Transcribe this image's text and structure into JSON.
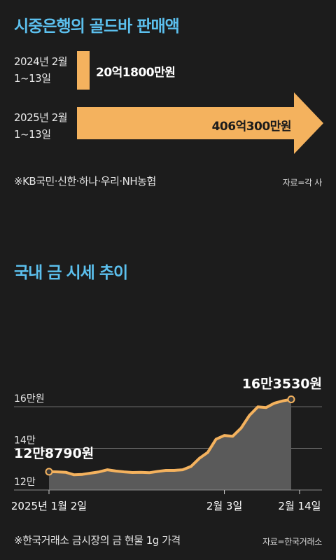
{
  "section1": {
    "title": "시중은행의 골드바 판매액",
    "rows": [
      {
        "period_line1": "2024년 2월",
        "period_line2": "1~13일",
        "value_label": "20억1800만원",
        "value_eok": 20.18
      },
      {
        "period_line1": "2025년 2월",
        "period_line2": "1~13일",
        "value_label": "406억300만원",
        "value_eok": 406.03
      }
    ],
    "note": "※KB국민·신한·하나·우리·NH농협",
    "source": "자료=각 사"
  },
  "section2": {
    "title": "국내 금 시세 추이",
    "note": "※한국거래소 금시장의 금 현물 1g 가격",
    "source": "자료=한국거래소"
  },
  "colors": {
    "accent": "#f4b25e",
    "title_blue": "#5cc0ee",
    "background": "#1c1c1c",
    "area_fill": "#5a5a5a"
  },
  "chart_data": [
    {
      "type": "bar",
      "title": "시중은행의 골드바 판매액",
      "categories": [
        "2024년 2월 1~13일",
        "2025년 2월 1~13일"
      ],
      "values": [
        20.18,
        406.03
      ],
      "data_labels": [
        "20억1800만원",
        "406억300만원"
      ],
      "orientation": "horizontal"
    },
    {
      "type": "area",
      "title": "국내 금 시세 추이",
      "ylim": [
        120000,
        168000
      ],
      "yticks": [
        {
          "value": 120000,
          "label": "12만"
        },
        {
          "value": 140000,
          "label": "14만"
        },
        {
          "value": 160000,
          "label": "16만원"
        }
      ],
      "xticks": [
        {
          "index": 0,
          "label": "2025년 1월 2일"
        },
        {
          "index": 21,
          "label": "2월 3일"
        },
        {
          "index": 30,
          "label": "2월 14일"
        }
      ],
      "series": [
        {
          "values": [
            128790,
            128700,
            128500,
            127300,
            127500,
            128100,
            128700,
            129700,
            129100,
            128700,
            128400,
            128500,
            128300,
            128900,
            129400,
            129400,
            129700,
            131300,
            135200,
            138000,
            144400,
            146200,
            145800,
            149700,
            155800,
            159900,
            159600,
            161700,
            162800,
            163530
          ]
        }
      ],
      "annotations": [
        {
          "index": 0,
          "label": "12만8790원"
        },
        {
          "index": 29,
          "label": "16만3530원"
        }
      ]
    }
  ]
}
